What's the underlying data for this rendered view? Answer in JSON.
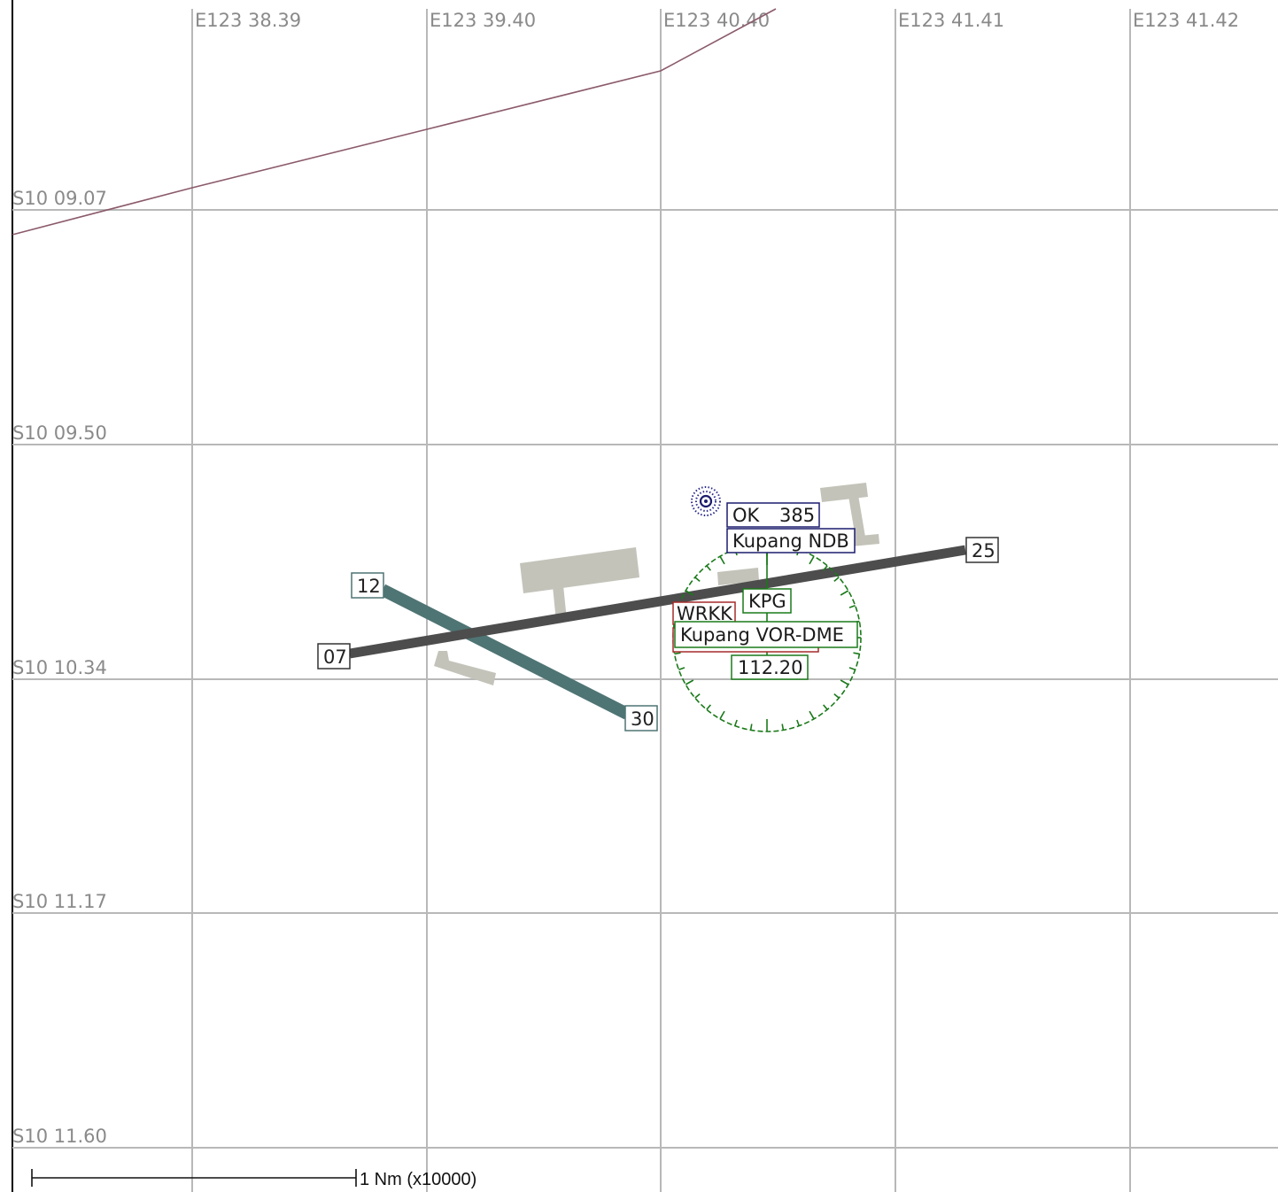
{
  "map": {
    "longitude_labels": [
      "E123 38.39",
      "E123 39.40",
      "E123 40.40",
      "E123 41.41",
      "E123 41.42"
    ],
    "latitude_labels": [
      "S10 09.07",
      "S10 09.50",
      "S10 10.34",
      "S10 11.17",
      "S10 11.60"
    ],
    "runways": [
      {
        "end_a": "07",
        "end_b": "25",
        "color": "#4d4d4d"
      },
      {
        "end_a": "12",
        "end_b": "30",
        "color": "#4f7474"
      }
    ],
    "airport": {
      "code": "WRKK",
      "color": "#a52a2a"
    },
    "ndb": {
      "ident": "OK",
      "frequency": "385",
      "name": "Kupang NDB",
      "color": "#1c1c6e",
      "icon": "ndb-icon"
    },
    "vor": {
      "ident": "KPG",
      "name": "Kupang VOR-DME",
      "frequency": "112.20",
      "color": "#1a7a1a",
      "icon": "vor-compass-rose-icon"
    },
    "airway_color": "#8b5a6b",
    "scale_bar": {
      "label": "1 Nm (x10000)"
    }
  }
}
